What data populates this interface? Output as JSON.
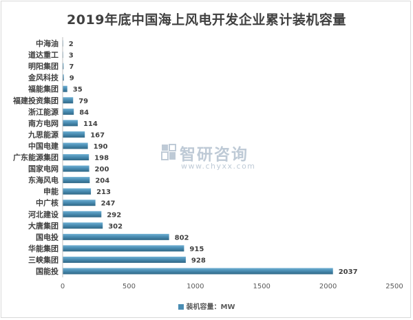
{
  "chart_data": {
    "type": "bar",
    "orientation": "horizontal",
    "title": "2019年底中国海上风电开发企业累计装机容量",
    "categories": [
      "中海油",
      "道达重工",
      "明阳集团",
      "金风科技",
      "福能集团",
      "福建投资集团",
      "浙江能源",
      "南方电网",
      "九思能源",
      "中国电建",
      "广东能源集团",
      "国家电网",
      "东海风电",
      "申能",
      "中广核",
      "河北建设",
      "大唐集团",
      "国电投",
      "华能集团",
      "三峡集团",
      "国能投"
    ],
    "series": [
      {
        "name": "装机容量：MW",
        "values": [
          2,
          3,
          7,
          9,
          35,
          79,
          84,
          114,
          167,
          190,
          198,
          200,
          204,
          213,
          247,
          292,
          302,
          802,
          915,
          928,
          2037
        ]
      }
    ],
    "xlim": [
      0,
      2500
    ],
    "xticks": [
      0,
      500,
      1000,
      1500,
      2000,
      2500
    ],
    "grid": false,
    "legend_position": "bottom",
    "bar_color": "#4a8db3"
  },
  "watermark": {
    "name": "智研咨询",
    "url": "www.chyxx.com"
  }
}
